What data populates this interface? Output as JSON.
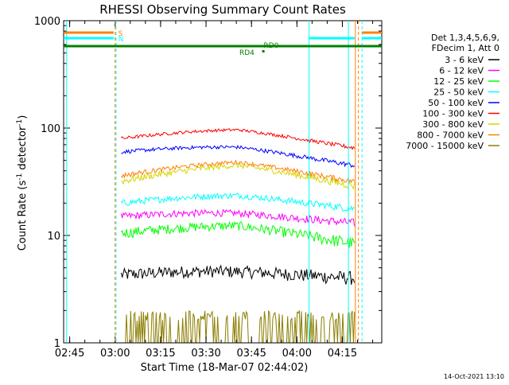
{
  "chart_data": {
    "type": "line",
    "title": "RHESSI Observing Summary Count Rates",
    "xlabel": "Start Time (18-Mar-07 02:44:02)",
    "ylabel_main": "Count Rate (s",
    "ylabel_sup1": "-1",
    "ylabel_mid": " detector",
    "ylabel_sup2": "-1",
    "ylabel_end": ")",
    "x_scale": "time (minutes after 02:44:02)",
    "x_range_min": [
      0,
      31
    ],
    "y_scale": "log",
    "y_range": [
      1,
      1000
    ],
    "x_ticks": [
      {
        "min": 1,
        "label": "02:45"
      },
      {
        "min": 16,
        "label": "03:00"
      },
      {
        "min": 31,
        "label": "03:15"
      },
      {
        "min": 46,
        "label": "03:30"
      },
      {
        "min": 61,
        "label": "03:45"
      },
      {
        "min": 76,
        "label": "04:00"
      },
      {
        "min": 91,
        "label": "04:15"
      }
    ],
    "y_ticks": [
      {
        "value": 1,
        "label": "1"
      },
      {
        "value": 10,
        "label": "10"
      },
      {
        "value": 100,
        "label": "100"
      },
      {
        "value": 1000,
        "label": "1000"
      }
    ],
    "legend_header": [
      "Det 1,3,4,5,6,9,",
      "FDecim 1, Att 0"
    ],
    "legend_position": "right",
    "series": [
      {
        "name": "3 - 6 keV",
        "color": "#000000",
        "start": 4.3,
        "mid": 4.3,
        "end": 4.3,
        "noise": 0.6
      },
      {
        "name": "6 - 12 keV",
        "color": "#ff00ff",
        "start": 15,
        "mid": 15,
        "end": 14,
        "noise": 1.2
      },
      {
        "name": "12 - 25 keV",
        "color": "#00ff00",
        "start": 10.5,
        "mid": 11.5,
        "end": 9,
        "noise": 1.2
      },
      {
        "name": "25 - 50 keV",
        "color": "#00ffff",
        "start": 20,
        "mid": 22,
        "end": 19,
        "noise": 1.5
      },
      {
        "name": "50 - 100 keV",
        "color": "#0000ff",
        "start": 60,
        "mid": 62,
        "end": 48,
        "noise": 2.5
      },
      {
        "name": "100 - 300 keV",
        "color": "#ff0000",
        "start": 80,
        "mid": 90,
        "end": 70,
        "noise": 3
      },
      {
        "name": "300 - 800 keV",
        "color": "#d6d600",
        "start": 32,
        "mid": 42,
        "end": 31,
        "noise": 2.5
      },
      {
        "name": "800 - 7000 keV",
        "color": "#ff8000",
        "start": 36,
        "mid": 45,
        "end": 34,
        "noise": 2
      },
      {
        "name": "7000 - 15000 keV",
        "color": "#8b7d00",
        "start": 1.2,
        "mid": 1.2,
        "end": 1.2,
        "noise": 0.5
      }
    ],
    "flags": [
      {
        "label": "S",
        "color": "#ff8000"
      },
      {
        "label": "N",
        "color": "#00ffff"
      },
      {
        "label": "RD0",
        "color": "#008000"
      },
      {
        "label": "RD4",
        "color": "#008000"
      }
    ],
    "timestamp": "14-Oct-2021 13:10"
  }
}
